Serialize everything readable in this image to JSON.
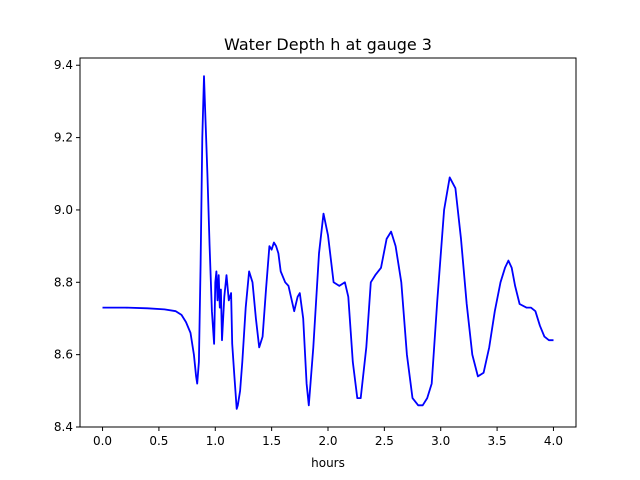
{
  "chart_data": {
    "type": "line",
    "title": "Water Depth h at gauge 3",
    "xlabel": "hours",
    "ylabel": "",
    "xlim": [
      -0.2,
      4.2
    ],
    "ylim": [
      8.4,
      9.42
    ],
    "xticks": [
      0.0,
      0.5,
      1.0,
      1.5,
      2.0,
      2.5,
      3.0,
      3.5,
      4.0
    ],
    "xtick_labels": [
      "0.0",
      "0.5",
      "1.0",
      "1.5",
      "2.0",
      "2.5",
      "3.0",
      "3.5",
      "4.0"
    ],
    "yticks": [
      8.4,
      8.6,
      8.8,
      9.0,
      9.2,
      9.4
    ],
    "ytick_labels": [
      "8.4",
      "8.6",
      "8.8",
      "9.0",
      "9.2",
      "9.4"
    ],
    "grid": false,
    "series": [
      {
        "color": "#0000ff",
        "x": [
          0.0,
          0.2,
          0.4,
          0.55,
          0.65,
          0.7,
          0.74,
          0.78,
          0.81,
          0.83,
          0.84,
          0.855,
          0.87,
          0.885,
          0.9,
          0.91,
          0.93,
          0.95,
          0.97,
          0.99,
          1.0,
          1.01,
          1.02,
          1.03,
          1.04,
          1.05,
          1.06,
          1.08,
          1.1,
          1.12,
          1.14,
          1.15,
          1.17,
          1.19,
          1.2,
          1.22,
          1.24,
          1.27,
          1.3,
          1.33,
          1.36,
          1.39,
          1.42,
          1.45,
          1.48,
          1.5,
          1.52,
          1.54,
          1.56,
          1.58,
          1.62,
          1.65,
          1.7,
          1.73,
          1.75,
          1.78,
          1.81,
          1.83,
          1.87,
          1.92,
          1.96,
          2.0,
          2.05,
          2.1,
          2.15,
          2.18,
          2.22,
          2.26,
          2.29,
          2.34,
          2.38,
          2.42,
          2.47,
          2.52,
          2.56,
          2.6,
          2.65,
          2.7,
          2.75,
          2.8,
          2.84,
          2.88,
          2.92,
          2.97,
          3.03,
          3.08,
          3.13,
          3.18,
          3.23,
          3.28,
          3.33,
          3.38,
          3.43,
          3.48,
          3.53,
          3.57,
          3.6,
          3.63,
          3.66,
          3.7,
          3.76,
          3.8,
          3.84,
          3.88,
          3.92,
          3.96,
          4.0
        ],
        "y": [
          8.73,
          8.73,
          8.728,
          8.725,
          8.72,
          8.71,
          8.69,
          8.66,
          8.6,
          8.54,
          8.52,
          8.58,
          8.85,
          9.2,
          9.37,
          9.28,
          9.1,
          8.9,
          8.72,
          8.63,
          8.8,
          8.83,
          8.75,
          8.82,
          8.73,
          8.78,
          8.64,
          8.76,
          8.82,
          8.75,
          8.77,
          8.63,
          8.54,
          8.45,
          8.46,
          8.5,
          8.58,
          8.73,
          8.83,
          8.8,
          8.7,
          8.62,
          8.65,
          8.78,
          8.9,
          8.89,
          8.91,
          8.9,
          8.88,
          8.83,
          8.8,
          8.79,
          8.72,
          8.76,
          8.77,
          8.7,
          8.52,
          8.46,
          8.62,
          8.88,
          8.99,
          8.93,
          8.8,
          8.79,
          8.8,
          8.76,
          8.58,
          8.48,
          8.48,
          8.62,
          8.8,
          8.82,
          8.84,
          8.92,
          8.94,
          8.9,
          8.8,
          8.6,
          8.48,
          8.46,
          8.46,
          8.48,
          8.52,
          8.75,
          9.0,
          9.09,
          9.06,
          8.92,
          8.74,
          8.6,
          8.54,
          8.55,
          8.62,
          8.72,
          8.8,
          8.84,
          8.86,
          8.84,
          8.79,
          8.74,
          8.73,
          8.73,
          8.72,
          8.68,
          8.65,
          8.64,
          8.64
        ]
      }
    ]
  }
}
